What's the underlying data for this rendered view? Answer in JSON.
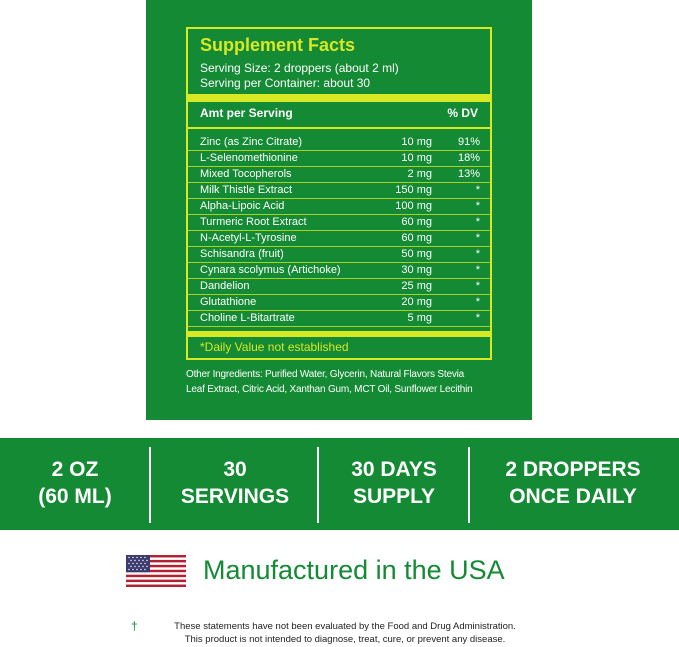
{
  "facts": {
    "title": "Supplement Facts",
    "serving_size": "Serving Size: 2 droppers (about 2 ml)",
    "servings_per_container": "Serving per Container: about 30",
    "header_amount": "Amt per Serving",
    "header_dv": "% DV",
    "rows": [
      {
        "name": "Zinc (as Zinc Citrate)",
        "amount": "10 mg",
        "dv": "91%"
      },
      {
        "name": "L-Selenomethionine",
        "amount": "10 mg",
        "dv": "18%"
      },
      {
        "name": "Mixed Tocopherols",
        "amount": "2 mg",
        "dv": "13%"
      },
      {
        "name": "Milk Thistle Extract",
        "amount": "150 mg",
        "dv": "*"
      },
      {
        "name": "Alpha-Lipoic Acid",
        "amount": "100 mg",
        "dv": "*"
      },
      {
        "name": "Turmeric Root Extract",
        "amount": "60 mg",
        "dv": "*"
      },
      {
        "name": "N-Acetyl-L-Tyrosine",
        "amount": "60 mg",
        "dv": "*"
      },
      {
        "name": "Schisandra (fruit)",
        "amount": "50 mg",
        "dv": "*"
      },
      {
        "name": "Cynara scolymus (Artichoke)",
        "amount": "30 mg",
        "dv": "*"
      },
      {
        "name": "Dandelion",
        "amount": "25 mg",
        "dv": "*"
      },
      {
        "name": "Glutathione",
        "amount": "20 mg",
        "dv": "*"
      },
      {
        "name": "Choline L-Bitartrate",
        "amount": "5 mg",
        "dv": "*"
      }
    ],
    "footnote": "*Daily Value not established"
  },
  "other_ingredients": {
    "line1": "Other Ingredients: Purified Water, Glycerin, Natural Flavors Stevia",
    "line2": "Leaf Extract, Citric Acid, Xanthan Gum, MCT Oil, Sunflower Lecithin"
  },
  "stats": [
    {
      "line1": "2 OZ",
      "line2": "(60 ML)"
    },
    {
      "line1": "30",
      "line2": "SERVINGS"
    },
    {
      "line1": "30 DAYS",
      "line2": "SUPPLY"
    },
    {
      "line1": "2 DROPPERS",
      "line2": "ONCE DAILY"
    }
  ],
  "made_in": "Manufactured in the USA",
  "flag_icon": "us-flag-icon",
  "disclaimer": {
    "symbol": "†",
    "line1": "These statements have not been evaluated by the Food and Drug Administration.",
    "line2": "This product is not intended to diagnose, treat, cure, or prevent any disease."
  },
  "colors": {
    "brand_green": "#148a34",
    "accent_yellow": "#d7e824",
    "flag_red": "#b22234",
    "flag_blue": "#3c3b6e"
  }
}
